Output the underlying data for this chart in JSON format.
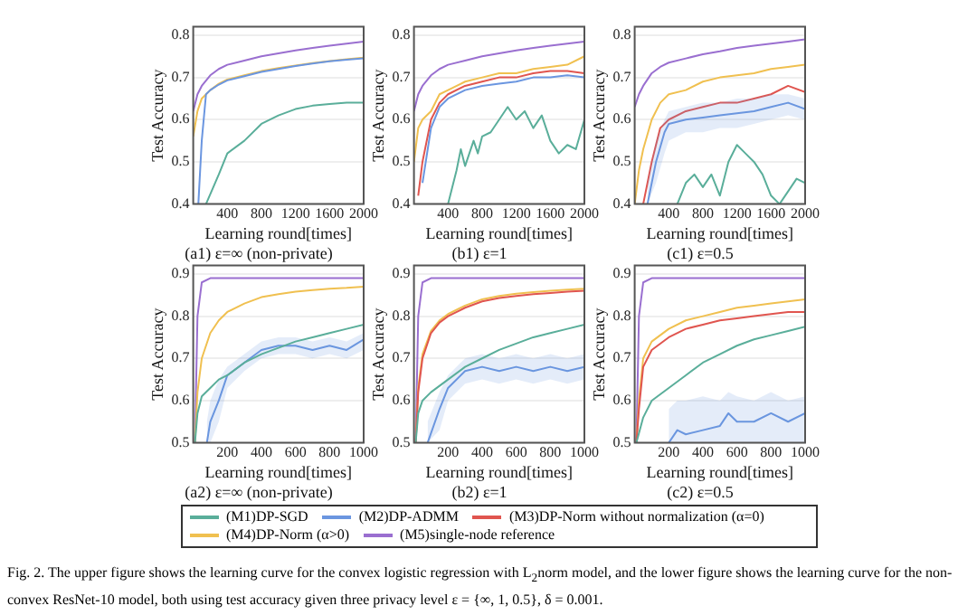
{
  "chart_data": [
    {
      "type": "line",
      "title": "(a1) ε=∞ (non-private)",
      "xlabel": "Learning round[times]",
      "ylabel": "Test Accuracy",
      "xlim": [
        0,
        2000
      ],
      "xticks": [
        400,
        800,
        1200,
        1600,
        2000
      ],
      "ylim": [
        0.4,
        0.82
      ],
      "yticks": [
        0.4,
        0.5,
        0.6,
        0.7,
        0.8
      ],
      "grid": "y",
      "marker": "none",
      "line_style": "solid",
      "series": [
        {
          "color": "#5aae9a",
          "x": [
            150,
            300,
            400,
            600,
            800,
            1000,
            1200,
            1400,
            1600,
            1800,
            2000
          ],
          "values": [
            0.4,
            0.47,
            0.52,
            0.55,
            0.59,
            0.61,
            0.625,
            0.633,
            0.637,
            0.64,
            0.64
          ]
        },
        {
          "color": "#6b96e0",
          "x": [
            60,
            100,
            150,
            200,
            300,
            400,
            600,
            800,
            1000,
            1200,
            1400,
            1600,
            1800,
            2000
          ],
          "values": [
            0.4,
            0.55,
            0.66,
            0.67,
            0.683,
            0.693,
            0.703,
            0.713,
            0.72,
            0.727,
            0.733,
            0.738,
            0.742,
            0.745
          ]
        },
        {
          "color": "#f0c050",
          "x": [
            0,
            50,
            100,
            200,
            300,
            400,
            600,
            800,
            1000,
            1200,
            1400,
            1600,
            1800,
            2000
          ],
          "values": [
            0.56,
            0.62,
            0.65,
            0.67,
            0.685,
            0.695,
            0.705,
            0.715,
            0.722,
            0.728,
            0.734,
            0.739,
            0.743,
            0.747
          ]
        },
        {
          "color": "#9a6fd0",
          "x": [
            0,
            50,
            100,
            200,
            300,
            400,
            600,
            800,
            1000,
            1200,
            1400,
            1600,
            1800,
            2000
          ],
          "values": [
            0.62,
            0.66,
            0.68,
            0.705,
            0.72,
            0.73,
            0.74,
            0.75,
            0.757,
            0.764,
            0.77,
            0.775,
            0.78,
            0.785
          ]
        }
      ]
    },
    {
      "type": "line",
      "title": "(b1) ε=1",
      "xlabel": "Learning round[times]",
      "ylabel": "Test Accuracy",
      "xlim": [
        0,
        2000
      ],
      "xticks": [
        400,
        800,
        1200,
        1600,
        2000
      ],
      "ylim": [
        0.4,
        0.82
      ],
      "yticks": [
        0.4,
        0.5,
        0.6,
        0.7,
        0.8
      ],
      "grid": "y",
      "marker": "none",
      "line_style": "solid",
      "series": [
        {
          "color": "#5aae9a",
          "x": [
            400,
            500,
            550,
            600,
            700,
            750,
            800,
            900,
            1000,
            1100,
            1200,
            1300,
            1400,
            1500,
            1600,
            1700,
            1800,
            1900,
            2000
          ],
          "values": [
            0.4,
            0.48,
            0.53,
            0.49,
            0.55,
            0.52,
            0.56,
            0.57,
            0.6,
            0.63,
            0.6,
            0.62,
            0.58,
            0.61,
            0.55,
            0.52,
            0.54,
            0.53,
            0.6
          ]
        },
        {
          "color": "#6b96e0",
          "x": [
            100,
            200,
            300,
            400,
            600,
            800,
            1000,
            1200,
            1400,
            1600,
            1800,
            2000
          ],
          "values": [
            0.45,
            0.58,
            0.63,
            0.65,
            0.67,
            0.68,
            0.685,
            0.69,
            0.7,
            0.7,
            0.705,
            0.7
          ]
        },
        {
          "color": "#e0554f",
          "x": [
            50,
            100,
            200,
            300,
            400,
            600,
            800,
            1000,
            1200,
            1400,
            1600,
            1800,
            2000
          ],
          "values": [
            0.42,
            0.5,
            0.6,
            0.64,
            0.66,
            0.68,
            0.69,
            0.7,
            0.7,
            0.71,
            0.715,
            0.715,
            0.71
          ]
        },
        {
          "color": "#f0c050",
          "x": [
            0,
            50,
            100,
            200,
            300,
            400,
            600,
            800,
            1000,
            1200,
            1400,
            1600,
            1800,
            2000
          ],
          "values": [
            0.5,
            0.58,
            0.6,
            0.62,
            0.66,
            0.67,
            0.69,
            0.7,
            0.71,
            0.71,
            0.72,
            0.725,
            0.73,
            0.75
          ]
        },
        {
          "color": "#9a6fd0",
          "x": [
            0,
            50,
            100,
            200,
            300,
            400,
            600,
            800,
            1000,
            1200,
            1400,
            1600,
            1800,
            2000
          ],
          "values": [
            0.62,
            0.66,
            0.68,
            0.705,
            0.72,
            0.73,
            0.74,
            0.75,
            0.757,
            0.764,
            0.77,
            0.775,
            0.78,
            0.785
          ]
        }
      ]
    },
    {
      "type": "line",
      "title": "(c1) ε=0.5",
      "xlabel": "Learning round[times]",
      "ylabel": "Test Accuracy",
      "xlim": [
        0,
        2000
      ],
      "xticks": [
        400,
        800,
        1200,
        1600,
        2000
      ],
      "ylim": [
        0.4,
        0.82
      ],
      "yticks": [
        0.4,
        0.5,
        0.6,
        0.7,
        0.8
      ],
      "grid": "y",
      "marker": "none",
      "line_style": "solid",
      "series": [
        {
          "color": "#5aae9a",
          "x": [
            500,
            600,
            700,
            800,
            900,
            1000,
            1100,
            1200,
            1300,
            1400,
            1500,
            1600,
            1700,
            1800,
            1900,
            2000
          ],
          "values": [
            0.4,
            0.45,
            0.47,
            0.44,
            0.47,
            0.42,
            0.5,
            0.54,
            0.52,
            0.5,
            0.47,
            0.42,
            0.4,
            0.43,
            0.46,
            0.45
          ]
        },
        {
          "color": "#6b96e0",
          "x": [
            150,
            250,
            350,
            400,
            600,
            800,
            1000,
            1200,
            1400,
            1600,
            1800,
            2000
          ],
          "values": [
            0.4,
            0.5,
            0.57,
            0.59,
            0.6,
            0.605,
            0.61,
            0.615,
            0.62,
            0.63,
            0.64,
            0.625
          ],
          "lower": [
            0.4,
            0.45,
            0.52,
            0.55,
            0.57,
            0.57,
            0.58,
            0.58,
            0.59,
            0.6,
            0.61,
            0.6
          ],
          "upper": [
            0.45,
            0.55,
            0.6,
            0.62,
            0.63,
            0.64,
            0.64,
            0.65,
            0.65,
            0.66,
            0.66,
            0.65
          ]
        },
        {
          "color": "#e0554f",
          "x": [
            100,
            200,
            300,
            400,
            600,
            800,
            1000,
            1200,
            1400,
            1600,
            1800,
            2000
          ],
          "values": [
            0.4,
            0.5,
            0.58,
            0.6,
            0.62,
            0.63,
            0.64,
            0.64,
            0.65,
            0.66,
            0.68,
            0.665
          ]
        },
        {
          "color": "#f0c050",
          "x": [
            0,
            50,
            100,
            200,
            300,
            400,
            600,
            800,
            1000,
            1200,
            1400,
            1600,
            1800,
            2000
          ],
          "values": [
            0.4,
            0.48,
            0.53,
            0.6,
            0.64,
            0.66,
            0.67,
            0.69,
            0.7,
            0.705,
            0.71,
            0.72,
            0.725,
            0.73
          ]
        },
        {
          "color": "#9a6fd0",
          "x": [
            0,
            50,
            100,
            200,
            300,
            400,
            600,
            800,
            1000,
            1200,
            1400,
            1600,
            1800,
            2000
          ],
          "values": [
            0.63,
            0.66,
            0.68,
            0.71,
            0.725,
            0.735,
            0.745,
            0.755,
            0.762,
            0.77,
            0.775,
            0.78,
            0.785,
            0.79
          ]
        }
      ]
    },
    {
      "type": "line",
      "title": "(a2) ε=∞ (non-private)",
      "xlabel": "Learning round[times]",
      "ylabel": "Test Accuracy",
      "xlim": [
        0,
        1000
      ],
      "xticks": [
        200,
        400,
        600,
        800,
        1000
      ],
      "ylim": [
        0.5,
        0.92
      ],
      "yticks": [
        0.5,
        0.6,
        0.7,
        0.8,
        0.9
      ],
      "grid": "y",
      "marker": "none",
      "line_style": "solid",
      "series": [
        {
          "color": "#5aae9a",
          "x": [
            10,
            25,
            50,
            100,
            150,
            200,
            300,
            400,
            500,
            600,
            700,
            800,
            900,
            1000
          ],
          "values": [
            0.5,
            0.57,
            0.61,
            0.63,
            0.65,
            0.66,
            0.69,
            0.71,
            0.725,
            0.74,
            0.75,
            0.76,
            0.77,
            0.78
          ]
        },
        {
          "color": "#6b96e0",
          "x": [
            80,
            100,
            150,
            200,
            300,
            400,
            500,
            600,
            700,
            800,
            900,
            1000
          ],
          "values": [
            0.5,
            0.55,
            0.6,
            0.66,
            0.69,
            0.72,
            0.73,
            0.73,
            0.72,
            0.73,
            0.72,
            0.745
          ],
          "lower": [
            0.5,
            0.5,
            0.55,
            0.63,
            0.67,
            0.7,
            0.71,
            0.71,
            0.7,
            0.71,
            0.7,
            0.72
          ],
          "upper": [
            0.55,
            0.6,
            0.65,
            0.68,
            0.71,
            0.74,
            0.75,
            0.75,
            0.74,
            0.75,
            0.74,
            0.76
          ]
        },
        {
          "color": "#f0c050",
          "x": [
            10,
            25,
            50,
            100,
            150,
            200,
            300,
            400,
            500,
            600,
            700,
            800,
            900,
            1000
          ],
          "values": [
            0.5,
            0.62,
            0.7,
            0.76,
            0.79,
            0.81,
            0.83,
            0.845,
            0.852,
            0.858,
            0.862,
            0.865,
            0.867,
            0.87
          ]
        },
        {
          "color": "#9a6fd0",
          "x": [
            10,
            25,
            50,
            100,
            300,
            600,
            1000
          ],
          "values": [
            0.5,
            0.8,
            0.88,
            0.89,
            0.89,
            0.89,
            0.89
          ]
        }
      ]
    },
    {
      "type": "line",
      "title": "(b2) ε=1",
      "xlabel": "Learning round[times]",
      "ylabel": "Test Accuracy",
      "xlim": [
        0,
        1000
      ],
      "xticks": [
        200,
        400,
        600,
        800,
        1000
      ],
      "ylim": [
        0.5,
        0.92
      ],
      "yticks": [
        0.5,
        0.6,
        0.7,
        0.8,
        0.9
      ],
      "grid": "y",
      "marker": "none",
      "line_style": "solid",
      "legend": "bottom",
      "series": [
        {
          "name": "(M1)DP-SGD",
          "color": "#5aae9a",
          "x": [
            10,
            25,
            50,
            100,
            200,
            300,
            400,
            500,
            600,
            700,
            800,
            900,
            1000
          ],
          "values": [
            0.5,
            0.57,
            0.6,
            0.62,
            0.65,
            0.68,
            0.7,
            0.72,
            0.735,
            0.75,
            0.76,
            0.77,
            0.78
          ]
        },
        {
          "name": "(M2)DP-ADMM",
          "color": "#6b96e0",
          "x": [
            80,
            150,
            200,
            300,
            400,
            500,
            600,
            700,
            800,
            900,
            1000
          ],
          "values": [
            0.5,
            0.58,
            0.63,
            0.67,
            0.68,
            0.67,
            0.68,
            0.67,
            0.68,
            0.67,
            0.68
          ],
          "lower": [
            0.5,
            0.53,
            0.6,
            0.64,
            0.65,
            0.64,
            0.65,
            0.64,
            0.65,
            0.64,
            0.65
          ],
          "upper": [
            0.55,
            0.62,
            0.66,
            0.7,
            0.71,
            0.7,
            0.71,
            0.7,
            0.71,
            0.7,
            0.71
          ]
        },
        {
          "name": "(M3)DP-Norm without normalization (α=0)",
          "color": "#e0554f",
          "x": [
            10,
            25,
            50,
            100,
            150,
            200,
            300,
            400,
            500,
            600,
            700,
            800,
            900,
            1000
          ],
          "values": [
            0.5,
            0.62,
            0.7,
            0.76,
            0.785,
            0.8,
            0.82,
            0.835,
            0.843,
            0.848,
            0.852,
            0.855,
            0.858,
            0.86
          ]
        },
        {
          "name": "(M4)DP-Norm (α>0)",
          "color": "#f0c050",
          "x": [
            10,
            25,
            50,
            100,
            150,
            200,
            300,
            400,
            500,
            600,
            700,
            800,
            900,
            1000
          ],
          "values": [
            0.5,
            0.63,
            0.71,
            0.765,
            0.79,
            0.805,
            0.825,
            0.84,
            0.848,
            0.853,
            0.857,
            0.86,
            0.863,
            0.865
          ]
        },
        {
          "name": "(M5)single-node reference",
          "color": "#9a6fd0",
          "x": [
            10,
            25,
            50,
            100,
            300,
            600,
            1000
          ],
          "values": [
            0.5,
            0.8,
            0.88,
            0.89,
            0.89,
            0.89,
            0.89
          ]
        }
      ],
      "annotations": [
        "Fig. 2.   The upper figure shows the learning curve for the convex logistic regression with L$_{2}$norm model, and the lower figure shows the learning curve for the non-convex ResNet-10 model, both using test accuracy given three privacy level ε = {∞, 1, 0.5}, δ = 0.001."
      ]
    },
    {
      "type": "line",
      "title": "(c2) ε=0.5",
      "xlabel": "Learning round[times]",
      "ylabel": "Test Accuracy",
      "xlim": [
        0,
        1000
      ],
      "xticks": [
        200,
        400,
        600,
        800,
        1000
      ],
      "ylim": [
        0.5,
        0.92
      ],
      "yticks": [
        0.5,
        0.6,
        0.7,
        0.8,
        0.9
      ],
      "grid": "y",
      "marker": "none",
      "line_style": "solid",
      "series": [
        {
          "color": "#5aae9a",
          "x": [
            10,
            50,
            100,
            200,
            300,
            400,
            500,
            600,
            700,
            800,
            900,
            1000
          ],
          "values": [
            0.5,
            0.56,
            0.6,
            0.63,
            0.66,
            0.69,
            0.71,
            0.73,
            0.745,
            0.755,
            0.765,
            0.775
          ]
        },
        {
          "color": "#6b96e0",
          "x": [
            200,
            250,
            300,
            400,
            500,
            550,
            600,
            700,
            800,
            900,
            1000
          ],
          "values": [
            0.5,
            0.53,
            0.52,
            0.53,
            0.54,
            0.57,
            0.55,
            0.55,
            0.57,
            0.55,
            0.57
          ],
          "lower": [
            0.5,
            0.5,
            0.5,
            0.5,
            0.5,
            0.5,
            0.5,
            0.5,
            0.5,
            0.5,
            0.5
          ],
          "upper": [
            0.58,
            0.6,
            0.6,
            0.61,
            0.6,
            0.62,
            0.61,
            0.6,
            0.62,
            0.6,
            0.61
          ]
        },
        {
          "color": "#e0554f",
          "x": [
            10,
            25,
            50,
            100,
            200,
            300,
            400,
            500,
            600,
            700,
            800,
            900,
            1000
          ],
          "values": [
            0.5,
            0.58,
            0.68,
            0.72,
            0.75,
            0.77,
            0.78,
            0.79,
            0.795,
            0.8,
            0.805,
            0.81,
            0.81
          ]
        },
        {
          "color": "#f0c050",
          "x": [
            10,
            25,
            50,
            100,
            200,
            300,
            400,
            500,
            600,
            700,
            800,
            900,
            1000
          ],
          "values": [
            0.5,
            0.6,
            0.7,
            0.74,
            0.77,
            0.79,
            0.8,
            0.81,
            0.82,
            0.825,
            0.83,
            0.835,
            0.84
          ]
        },
        {
          "color": "#9a6fd0",
          "x": [
            10,
            25,
            50,
            100,
            300,
            600,
            1000
          ],
          "values": [
            0.5,
            0.8,
            0.88,
            0.89,
            0.89,
            0.89,
            0.89
          ]
        }
      ]
    }
  ]
}
